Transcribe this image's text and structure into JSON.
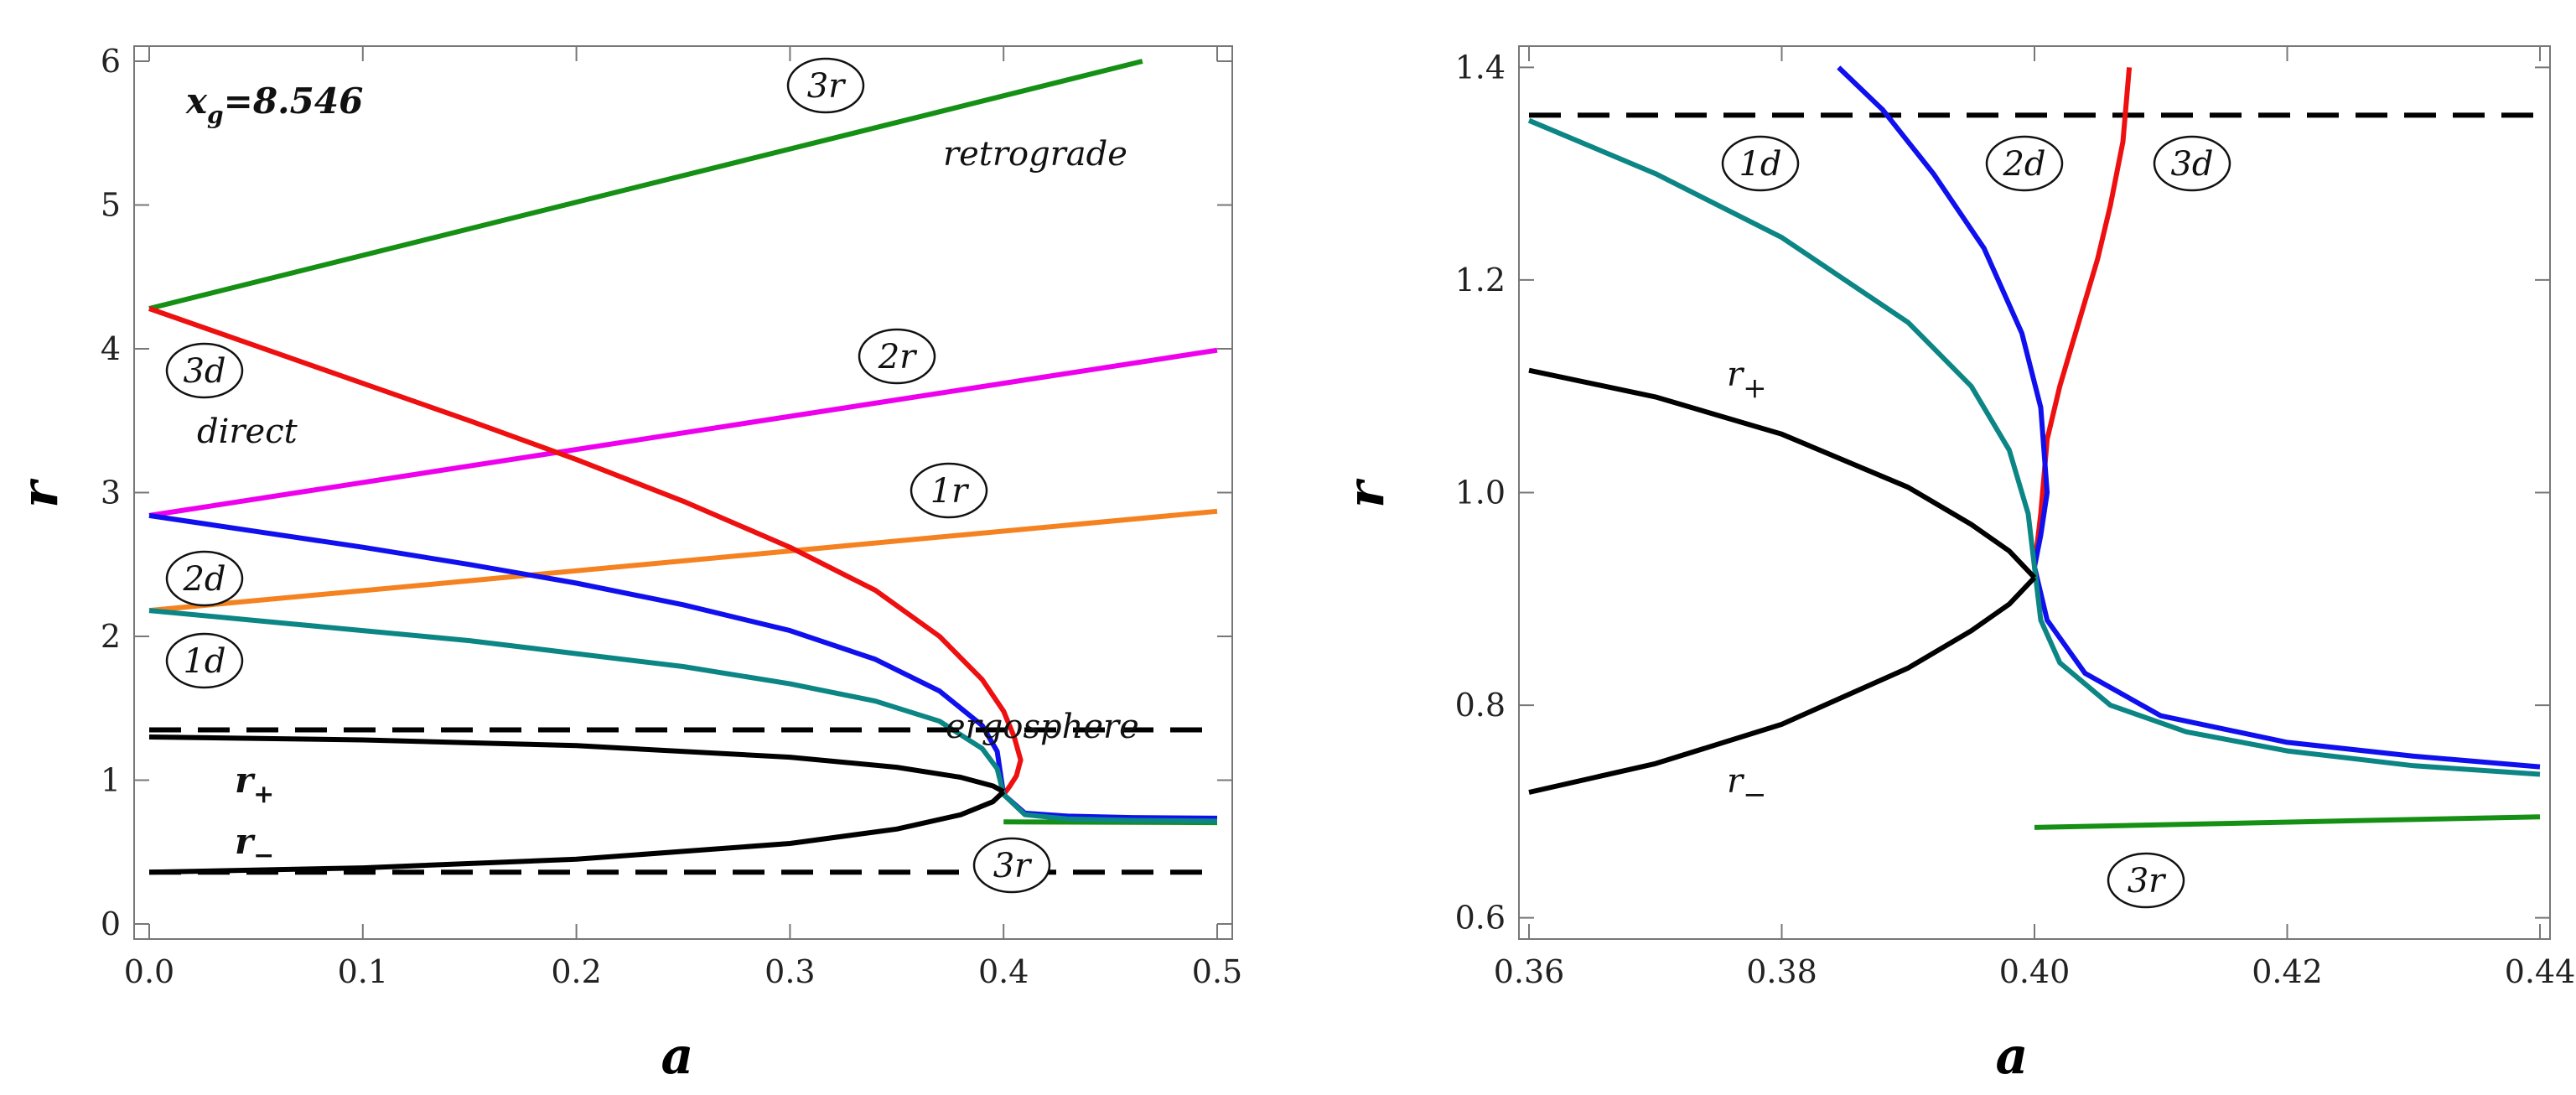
{
  "colors": {
    "series_1d": "#0c8585",
    "series_2d": "#1010ee",
    "series_3d": "#ee1010",
    "series_1r": "#f58220",
    "series_2r": "#ee00ee",
    "series_3r": "#159015",
    "horizon": "#000000",
    "ergosphere": "#000000"
  },
  "chart_data": [
    {
      "type": "line",
      "panel": "left",
      "title": "",
      "xlabel": "a",
      "ylabel": "r",
      "xlim": [
        0.0,
        0.5
      ],
      "ylim": [
        0,
        6
      ],
      "xticks": [
        "0.0",
        "0.1",
        "0.2",
        "0.3",
        "0.4",
        "0.5"
      ],
      "yticks": [
        "0",
        "1",
        "2",
        "3",
        "4",
        "5",
        "6"
      ],
      "annotations": {
        "xg_prefix": "x",
        "xg_sub": "g",
        "xg_value": "=8.546",
        "retrograde": "retrograde",
        "direct": "direct",
        "ergosphere": "ergosphere",
        "r_plus": "r",
        "r_plus_sub": "+",
        "r_minus": "r",
        "r_minus_sub": "−"
      },
      "circle_labels": [
        "3r",
        "2r",
        "1r",
        "3d",
        "2d",
        "1d",
        "3r"
      ],
      "series": [
        {
          "name": "3r",
          "color_key": "series_3r",
          "x": [
            0.0,
            0.465
          ],
          "y": [
            4.28,
            6.0
          ]
        },
        {
          "name": "3r_low",
          "color_key": "series_3r",
          "x": [
            0.4,
            0.5
          ],
          "y": [
            0.71,
            0.705
          ]
        },
        {
          "name": "2r",
          "color_key": "series_2r",
          "x": [
            0.0,
            0.5
          ],
          "y": [
            2.84,
            3.99
          ]
        },
        {
          "name": "1r",
          "color_key": "series_1r",
          "x": [
            0.0,
            0.5
          ],
          "y": [
            2.18,
            2.87
          ]
        },
        {
          "name": "3d",
          "color_key": "series_3d",
          "x": [
            0.0,
            0.05,
            0.1,
            0.15,
            0.2,
            0.25,
            0.3,
            0.34,
            0.37,
            0.39,
            0.4,
            0.405,
            0.408,
            0.406,
            0.403,
            0.4
          ],
          "y": [
            4.28,
            4.02,
            3.76,
            3.5,
            3.23,
            2.94,
            2.62,
            2.32,
            2.0,
            1.7,
            1.48,
            1.3,
            1.14,
            1.03,
            0.96,
            0.9
          ]
        },
        {
          "name": "2d",
          "color_key": "series_2d",
          "x": [
            0.0,
            0.05,
            0.1,
            0.15,
            0.2,
            0.25,
            0.3,
            0.34,
            0.37,
            0.39,
            0.397,
            0.4,
            0.41,
            0.43,
            0.46,
            0.5
          ],
          "y": [
            2.84,
            2.73,
            2.62,
            2.5,
            2.37,
            2.22,
            2.04,
            1.84,
            1.62,
            1.38,
            1.2,
            0.9,
            0.77,
            0.75,
            0.74,
            0.735
          ]
        },
        {
          "name": "1d",
          "color_key": "series_1d",
          "x": [
            0.0,
            0.05,
            0.1,
            0.15,
            0.2,
            0.25,
            0.3,
            0.34,
            0.37,
            0.39,
            0.397,
            0.4,
            0.41,
            0.43,
            0.46,
            0.5
          ],
          "y": [
            2.18,
            2.11,
            2.04,
            1.97,
            1.88,
            1.79,
            1.67,
            1.55,
            1.41,
            1.22,
            1.08,
            0.9,
            0.76,
            0.73,
            0.72,
            0.715
          ]
        },
        {
          "name": "r+",
          "color_key": "horizon",
          "x": [
            0.0,
            0.1,
            0.2,
            0.3,
            0.35,
            0.38,
            0.395,
            0.4
          ],
          "y": [
            1.3,
            1.28,
            1.24,
            1.16,
            1.09,
            1.02,
            0.96,
            0.92
          ]
        },
        {
          "name": "r-",
          "color_key": "horizon",
          "x": [
            0.0,
            0.1,
            0.2,
            0.3,
            0.35,
            0.38,
            0.395,
            0.4
          ],
          "y": [
            0.36,
            0.39,
            0.45,
            0.56,
            0.66,
            0.76,
            0.85,
            0.92
          ]
        },
        {
          "name": "ergosphere",
          "color_key": "ergosphere",
          "dashed": true,
          "x": [
            0.0,
            0.5
          ],
          "y": [
            1.35,
            1.35
          ]
        },
        {
          "name": "inner-dashed",
          "color_key": "horizon",
          "dashed": true,
          "x": [
            0.0,
            0.5
          ],
          "y": [
            0.36,
            0.36
          ]
        }
      ]
    },
    {
      "type": "line",
      "panel": "right",
      "title": "",
      "xlabel": "a",
      "ylabel": "r",
      "xlim": [
        0.36,
        0.44
      ],
      "ylim": [
        0.58,
        1.42
      ],
      "xticks": [
        "0.36",
        "0.38",
        "0.40",
        "0.42",
        "0.44"
      ],
      "yticks": [
        "0.6",
        "0.8",
        "1.0",
        "1.2",
        "1.4"
      ],
      "annotations": {
        "r_plus": "r",
        "r_plus_sub": "+",
        "r_minus": "r",
        "r_minus_sub": "−"
      },
      "circle_labels": [
        "1d",
        "2d",
        "3d",
        "3r"
      ],
      "series": [
        {
          "name": "ergosphere",
          "color_key": "ergosphere",
          "dashed": true,
          "x": [
            0.36,
            0.44
          ],
          "y": [
            1.355,
            1.355
          ]
        },
        {
          "name": "3d",
          "color_key": "series_3d",
          "x": [
            0.4,
            0.4005,
            0.401,
            0.402,
            0.403,
            0.404,
            0.405,
            0.406,
            0.407,
            0.4075
          ],
          "y": [
            0.93,
            0.98,
            1.05,
            1.1,
            1.14,
            1.18,
            1.22,
            1.27,
            1.33,
            1.4
          ]
        },
        {
          "name": "2d",
          "color_key": "series_2d",
          "x": [
            0.3845,
            0.388,
            0.392,
            0.396,
            0.399,
            0.4005,
            0.401,
            0.4005,
            0.4,
            0.401,
            0.404,
            0.41,
            0.42,
            0.43,
            0.44
          ],
          "y": [
            1.4,
            1.36,
            1.3,
            1.23,
            1.15,
            1.08,
            1.0,
            0.96,
            0.93,
            0.88,
            0.83,
            0.79,
            0.765,
            0.752,
            0.742
          ]
        },
        {
          "name": "1d",
          "color_key": "series_1d",
          "x": [
            0.36,
            0.37,
            0.38,
            0.39,
            0.395,
            0.398,
            0.3995,
            0.4,
            0.4005,
            0.402,
            0.406,
            0.412,
            0.42,
            0.43,
            0.44
          ],
          "y": [
            1.35,
            1.3,
            1.24,
            1.16,
            1.1,
            1.04,
            0.98,
            0.93,
            0.88,
            0.84,
            0.8,
            0.775,
            0.757,
            0.743,
            0.735
          ]
        },
        {
          "name": "r+",
          "color_key": "horizon",
          "x": [
            0.36,
            0.37,
            0.38,
            0.39,
            0.395,
            0.398,
            0.4
          ],
          "y": [
            1.115,
            1.09,
            1.055,
            1.005,
            0.97,
            0.945,
            0.92
          ]
        },
        {
          "name": "r-",
          "color_key": "horizon",
          "x": [
            0.36,
            0.37,
            0.38,
            0.39,
            0.395,
            0.398,
            0.4
          ],
          "y": [
            0.718,
            0.745,
            0.782,
            0.835,
            0.87,
            0.895,
            0.92
          ]
        },
        {
          "name": "3r",
          "color_key": "series_3r",
          "x": [
            0.4,
            0.44
          ],
          "y": [
            0.685,
            0.695
          ]
        }
      ]
    }
  ]
}
